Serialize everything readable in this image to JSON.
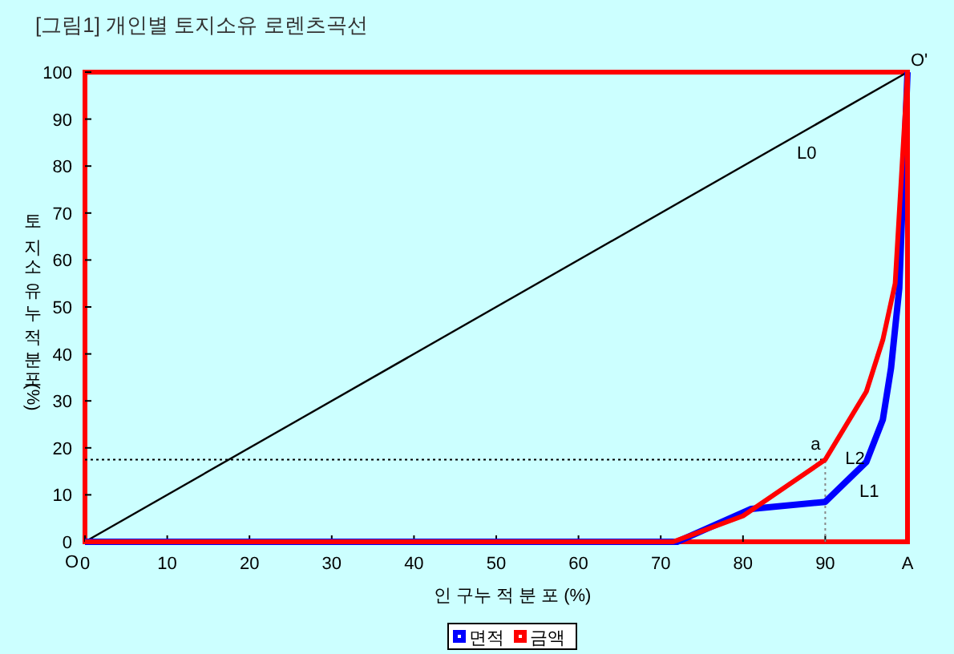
{
  "chart_data": {
    "type": "line",
    "title": "[그림1] 개인별 토지소유 로렌츠곡선",
    "xlabel": "인 구누 적 분 포 (%)",
    "ylabel": "토 지 소 유 누 적 분 포 (%)",
    "xlim": [
      0,
      100
    ],
    "ylim": [
      0,
      100
    ],
    "xticks": [
      0,
      10,
      20,
      30,
      40,
      50,
      60,
      70,
      80,
      90,
      {
        "value": 100,
        "label": "A"
      }
    ],
    "yticks": [
      0,
      10,
      20,
      30,
      40,
      50,
      60,
      70,
      80,
      90,
      100
    ],
    "series": [
      {
        "color": "#000000",
        "x": [
          0,
          100
        ],
        "values": [
          0,
          100
        ]
      },
      {
        "name": "면적",
        "color": "#0000ff",
        "x": [
          0,
          72,
          81,
          90,
          95,
          97,
          98,
          99,
          100
        ],
        "values": [
          0,
          0,
          7,
          8.5,
          17,
          26,
          37,
          54,
          100
        ]
      },
      {
        "name": "금액",
        "color": "#ff0000",
        "x": [
          0,
          71.5,
          80,
          90,
          95,
          97,
          98.5,
          100,
          100
        ],
        "values": [
          0,
          0,
          5.5,
          17.5,
          32,
          43,
          55,
          100,
          0
        ]
      }
    ],
    "ref_lines": [
      {
        "axis": "y",
        "value": 17.5,
        "color": "#000000",
        "line_style": "dotted"
      },
      {
        "axis": "x",
        "value": 90,
        "color": "#888888",
        "line_style": "dotted"
      }
    ],
    "annotations": [
      {
        "text": "L0",
        "x": 85,
        "y": 85
      },
      {
        "text": "a",
        "x": 90,
        "y": 17.5
      },
      {
        "text": "L2",
        "x": 90.86,
        "y": 20
      },
      {
        "text": "L1",
        "x": 92.6,
        "y": 13
      },
      {
        "text": "O",
        "x": 0,
        "y": 0
      },
      {
        "text": "O'",
        "x": 100,
        "y": 100
      }
    ],
    "legend": "bottom",
    "grid": false,
    "marker": "none",
    "line_style": "solid"
  }
}
